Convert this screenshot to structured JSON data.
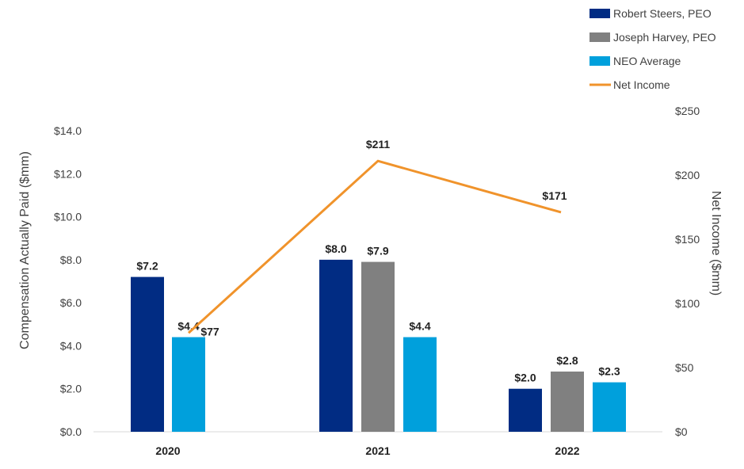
{
  "chart_data": {
    "type": "bar",
    "categories": [
      "2020",
      "2021",
      "2022"
    ],
    "series": [
      {
        "name": "Robert Steers, PEO",
        "color": "#012c83",
        "values": [
          7.2,
          8.0,
          2.0
        ],
        "labels": [
          "$7.2",
          "$8.0",
          "$2.0"
        ]
      },
      {
        "name": "Joseph Harvey, PEO",
        "color": "#808080",
        "values": [
          null,
          7.9,
          2.8
        ],
        "labels": [
          "",
          "$7.9",
          "$2.8"
        ]
      },
      {
        "name": "NEO Average",
        "color": "#00a0dc",
        "values": [
          4.4,
          4.4,
          2.3
        ],
        "labels": [
          "$4.4",
          "$4.4",
          "$2.3"
        ]
      }
    ],
    "line_series": {
      "name": "Net Income",
      "type": "line",
      "axis": "secondary",
      "color": "#f0932b",
      "values": [
        77,
        211,
        171
      ],
      "labels": [
        "$77",
        "$211",
        "$171"
      ]
    },
    "ylabel": "Compensation Actually Paid ($mm)",
    "ylim": [
      0,
      14
    ],
    "yticks": [
      "$0.0",
      "$2.0",
      "$4.0",
      "$6.0",
      "$8.0",
      "$10.0",
      "$12.0",
      "$14.0"
    ],
    "y2label": "Net Income ($mm)",
    "y2lim": [
      0,
      250
    ],
    "y2ticks": [
      "$0",
      "$50",
      "$100",
      "$150",
      "$200",
      "$250"
    ],
    "legend_position": "top-right",
    "grid": false
  }
}
